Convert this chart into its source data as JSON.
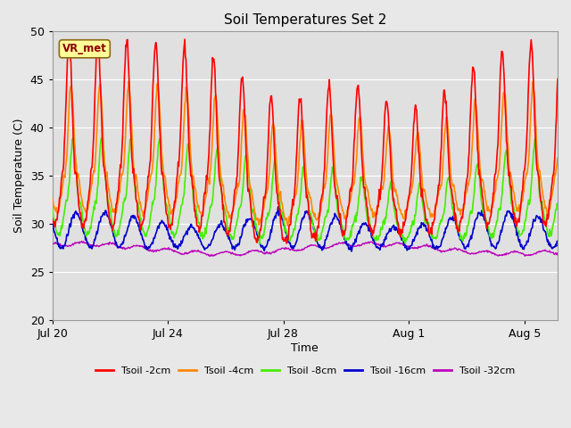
{
  "title": "Soil Temperatures Set 2",
  "xlabel": "Time",
  "ylabel": "Soil Temperature (C)",
  "ylim": [
    20,
    50
  ],
  "fig_bg_color": "#e8e8e8",
  "plot_bg_color": "#e0e0e0",
  "series": [
    {
      "label": "Tsoil -2cm",
      "color": "#ff0000"
    },
    {
      "label": "Tsoil -4cm",
      "color": "#ff8800"
    },
    {
      "label": "Tsoil -8cm",
      "color": "#44ee00"
    },
    {
      "label": "Tsoil -16cm",
      "color": "#0000cc"
    },
    {
      "label": "Tsoil -32cm",
      "color": "#bb00bb"
    }
  ],
  "annotation_text": "VR_met",
  "annotation_box_color": "#ffff99",
  "annotation_box_edge": "#8b6914",
  "x_tick_labels": [
    "Jul 20",
    "Jul 24",
    "Jul 28",
    "Aug 1",
    "Aug 5"
  ],
  "n_days": 17.5,
  "samples_per_day": 48,
  "seed": 42
}
